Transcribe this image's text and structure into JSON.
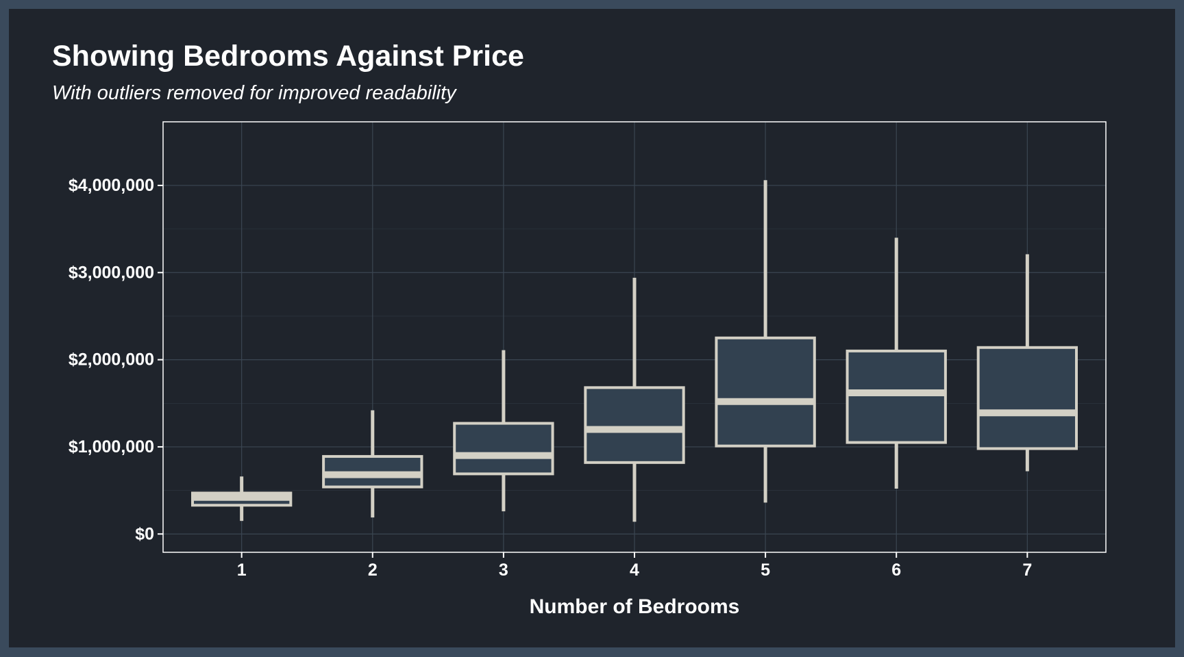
{
  "chart_data": {
    "type": "boxplot",
    "title": "Showing Bedrooms Against Price",
    "subtitle": "With outliers removed for improved readability",
    "xlabel": "Number of Bedrooms",
    "ylabel": "",
    "categories": [
      "1",
      "2",
      "3",
      "4",
      "5",
      "6",
      "7"
    ],
    "y_ticks": [
      0,
      1000000,
      2000000,
      3000000,
      4000000
    ],
    "y_tick_labels": [
      "$0",
      "$1,000,000",
      "$2,000,000",
      "$3,000,000",
      "$4,000,000"
    ],
    "ylim": [
      -210000,
      4730000
    ],
    "grid": true,
    "legend": "none",
    "boxes": [
      {
        "category": "1",
        "whisker_low": 150000,
        "q1": 330000,
        "median": 420000,
        "q3": 470000,
        "whisker_high": 660000
      },
      {
        "category": "2",
        "whisker_low": 190000,
        "q1": 540000,
        "median": 680000,
        "q3": 890000,
        "whisker_high": 1420000
      },
      {
        "category": "3",
        "whisker_low": 260000,
        "q1": 690000,
        "median": 900000,
        "q3": 1270000,
        "whisker_high": 2110000
      },
      {
        "category": "4",
        "whisker_low": 140000,
        "q1": 820000,
        "median": 1200000,
        "q3": 1680000,
        "whisker_high": 2940000
      },
      {
        "category": "5",
        "whisker_low": 360000,
        "q1": 1010000,
        "median": 1520000,
        "q3": 2250000,
        "whisker_high": 4060000
      },
      {
        "category": "6",
        "whisker_low": 520000,
        "q1": 1050000,
        "median": 1620000,
        "q3": 2100000,
        "whisker_high": 3400000
      },
      {
        "category": "7",
        "whisker_low": 720000,
        "q1": 980000,
        "median": 1390000,
        "q3": 2140000,
        "whisker_high": 3210000
      }
    ]
  },
  "colors": {
    "page_background": "#1f242c",
    "outer_border": "#3a4a5c",
    "box_fill": "#324150",
    "box_stroke": "#d3d0c5",
    "grid": "#3b4652",
    "text": "#ffffff"
  }
}
